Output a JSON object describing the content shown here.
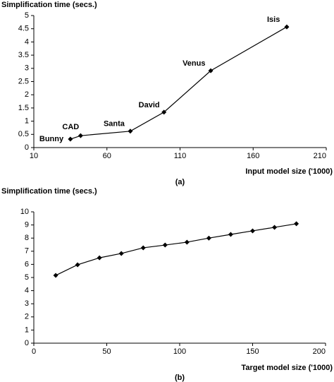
{
  "chart_data": [
    {
      "type": "line",
      "title": "Simplification time (secs.)",
      "x_label": "Input model size ('1000)",
      "caption": "(a)",
      "x": [
        35,
        42,
        76,
        99,
        131,
        183
      ],
      "values": [
        0.32,
        0.45,
        0.62,
        1.34,
        2.91,
        4.57
      ],
      "point_labels": [
        "Bunny",
        "CAD",
        "Santa",
        "David",
        "Venus",
        "Isis"
      ],
      "color": "#000000",
      "xlim": [
        10,
        210
      ],
      "xticks": [
        10,
        60,
        110,
        160,
        210
      ],
      "ylim": [
        0,
        5
      ],
      "yticks": [
        0,
        0.5,
        1,
        1.5,
        2,
        2.5,
        3,
        3.5,
        4,
        4.5,
        5
      ]
    },
    {
      "type": "line",
      "title": "Simplification time (secs.)",
      "x_label": "Target model size ('1000)",
      "caption": "(b)",
      "x": [
        15,
        30,
        45,
        60,
        75,
        90,
        105,
        120,
        135,
        150,
        165,
        180
      ],
      "values": [
        5.16,
        5.97,
        6.5,
        6.83,
        7.26,
        7.47,
        7.69,
        8.0,
        8.28,
        8.55,
        8.82,
        9.09
      ],
      "color": "#000000",
      "xlim": [
        0,
        200
      ],
      "xticks": [
        0,
        50,
        100,
        150,
        200
      ],
      "ylim": [
        0,
        10
      ],
      "yticks": [
        0,
        1,
        2,
        3,
        4,
        5,
        6,
        7,
        8,
        9,
        10
      ]
    }
  ]
}
